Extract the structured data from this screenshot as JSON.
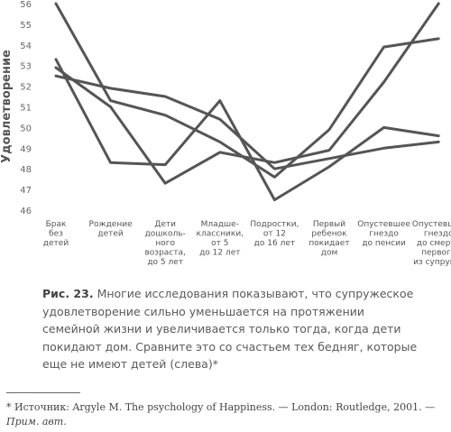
{
  "chart_data": {
    "type": "line",
    "ylabel": "Удовлетворение",
    "ylim": [
      46,
      56
    ],
    "yticks": [
      "46",
      "47",
      "48",
      "49",
      "50",
      "51",
      "52",
      "53",
      "54",
      "55",
      "56"
    ],
    "categories": [
      [
        "Брак",
        "без",
        "детей"
      ],
      [
        "Рождение",
        "детей"
      ],
      [
        "Дети",
        "дошколь-",
        "ного",
        "возраста,",
        "до 5 лет"
      ],
      [
        "Младше-",
        "классники,",
        "от 5",
        "до 12 лет"
      ],
      [
        "Подростки,",
        "от 12",
        "до 16 лет"
      ],
      [
        "Первый",
        "ребенок",
        "покидает",
        "дом"
      ],
      [
        "Опустевшее",
        "гнездо",
        "до пенсии"
      ],
      [
        "Опустевшее",
        "гнездо",
        "до смерти",
        "первого",
        "из супругов"
      ]
    ],
    "series": [
      {
        "values": [
          56.0,
          51.3,
          50.6,
          49.3,
          47.6,
          49.9,
          53.9,
          54.3
        ]
      },
      {
        "values": [
          53.3,
          48.3,
          48.2,
          51.3,
          46.5,
          48.1,
          50.0,
          49.6
        ]
      },
      {
        "values": [
          52.5,
          51.9,
          51.5,
          50.4,
          48.0,
          48.5,
          49.0,
          49.3
        ]
      },
      {
        "values": [
          52.9,
          51.0,
          47.3,
          48.8,
          48.3,
          48.9,
          52.2,
          56.0
        ]
      }
    ],
    "grid": false,
    "legend": "none"
  },
  "caption": {
    "figure_label": "Рис. 23.",
    "text": "Многие исследования показывают, что супружеское удовлетворение сильно уменьшается на протяжении семейной жизни и увеличивается только тогда, когда дети покидают дом. Сравните это со счастьем тех бедняг, которые еще не имеют детей (слева)*"
  },
  "footnote": {
    "text": "* Источник: Argyle M. The psychology of Happiness. — London: Routledge, 2001. —",
    "note": "Прим. авт."
  }
}
